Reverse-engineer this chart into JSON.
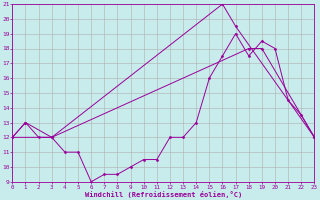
{
  "xlabel": "Windchill (Refroidissement éolien,°C)",
  "background_color": "#c8ecec",
  "grid_color": "#b0b0b0",
  "line_color": "#990099",
  "xmin": 0,
  "xmax": 23,
  "ymin": 9,
  "ymax": 21,
  "yticks": [
    9,
    10,
    11,
    12,
    13,
    14,
    15,
    16,
    17,
    18,
    19,
    20,
    21
  ],
  "xticks": [
    0,
    1,
    2,
    3,
    4,
    5,
    6,
    7,
    8,
    9,
    10,
    11,
    12,
    13,
    14,
    15,
    16,
    17,
    18,
    19,
    20,
    21,
    22,
    23
  ],
  "line1_x": [
    0,
    1,
    2,
    3,
    4,
    5,
    6,
    7,
    8,
    9,
    10,
    11,
    12,
    13,
    14,
    15,
    16,
    17,
    18,
    19,
    20,
    21,
    22,
    23
  ],
  "line1_y": [
    12,
    13,
    12,
    12,
    11,
    11,
    9,
    9.5,
    9.5,
    10,
    10.5,
    10.5,
    12,
    12,
    13,
    16,
    17.5,
    19,
    17.5,
    18.5,
    18,
    14.5,
    13.5,
    12
  ],
  "line2_x": [
    0,
    1,
    3,
    16,
    17,
    23
  ],
  "line2_y": [
    12,
    13,
    12,
    21,
    19.5,
    12
  ],
  "line3_x": [
    0,
    3,
    18,
    19,
    23
  ],
  "line3_y": [
    12,
    12,
    18,
    18,
    12
  ]
}
